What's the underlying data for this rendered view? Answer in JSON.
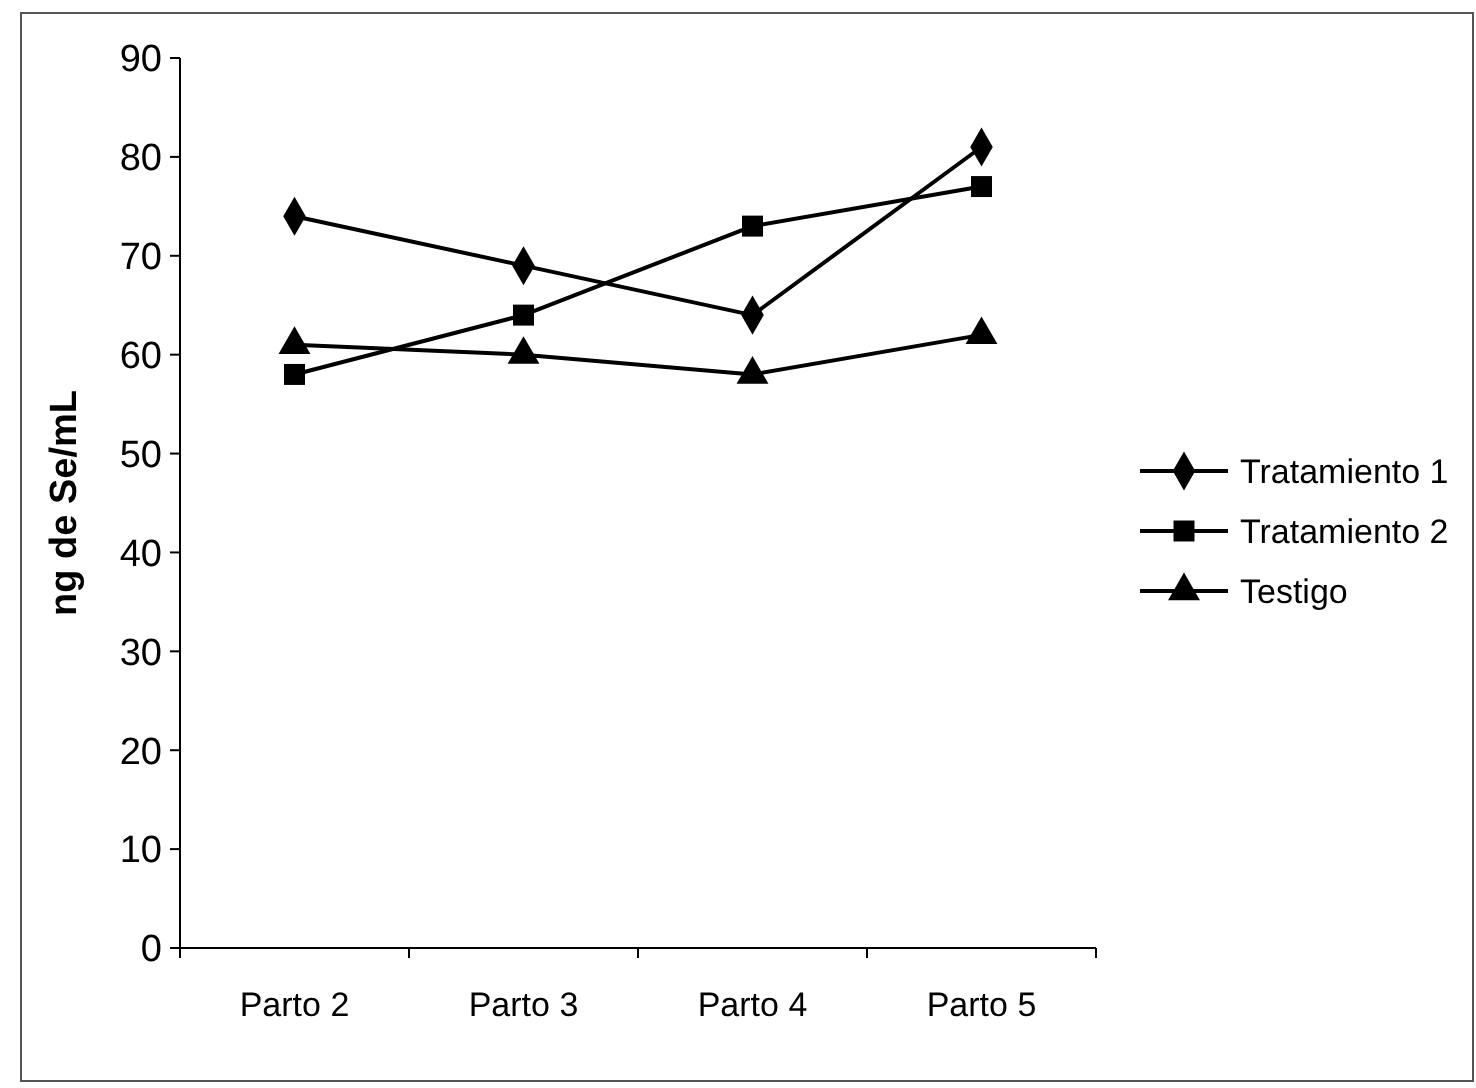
{
  "chart_data": {
    "type": "line",
    "ylabel": "ng de Se/mL",
    "categories": [
      "Parto 2",
      "Parto 3",
      "Parto 4",
      "Parto 5"
    ],
    "series": [
      {
        "name": "Tratamiento 1",
        "color": "#000000",
        "marker": "diamond",
        "values": [
          74,
          69,
          64,
          81
        ]
      },
      {
        "name": "Tratamiento 2",
        "color": "#000000",
        "marker": "square",
        "values": [
          58,
          64,
          73,
          77
        ]
      },
      {
        "name": "Testigo",
        "color": "#000000",
        "marker": "triangle",
        "values": [
          61,
          60,
          58,
          62
        ]
      }
    ],
    "ylim": [
      0,
      90
    ],
    "yticks": [
      0,
      10,
      20,
      30,
      40,
      50,
      60,
      70,
      80,
      90
    ],
    "legend": "right",
    "grid": false
  }
}
